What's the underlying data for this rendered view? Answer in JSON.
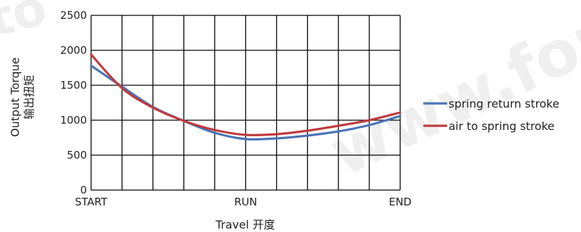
{
  "watermark": {
    "left_text": "to",
    "right_text": "www.forc"
  },
  "chart_data": {
    "type": "line",
    "xlabel": "Travel 开度",
    "ylabel_line1": "Output Torque",
    "ylabel_line2": "输出扭矩",
    "ylim": [
      0,
      2500
    ],
    "yticks": [
      0,
      500,
      1000,
      1500,
      2000,
      2500
    ],
    "ytick_labels": [
      "0",
      "500",
      "1000",
      "1500",
      "2000",
      "2500"
    ],
    "xlim": [
      0,
      10
    ],
    "x_ticks": [
      {
        "x": 0,
        "label": "START"
      },
      {
        "x": 5,
        "label": "RUN"
      },
      {
        "x": 10,
        "label": "END"
      }
    ],
    "grid": true,
    "legend_position": "right",
    "series": [
      {
        "name": "spring return stroke",
        "color": "#4a74b4",
        "points": [
          [
            0,
            1780
          ],
          [
            1,
            1480
          ],
          [
            2,
            1190
          ],
          [
            3,
            990
          ],
          [
            4,
            820
          ],
          [
            5,
            730
          ],
          [
            6,
            740
          ],
          [
            7,
            780
          ],
          [
            8,
            840
          ],
          [
            9,
            930
          ],
          [
            10,
            1060
          ]
        ]
      },
      {
        "name": "air to spring stroke",
        "color": "#bf3a3d",
        "points": [
          [
            0,
            1940
          ],
          [
            1,
            1460
          ],
          [
            2,
            1180
          ],
          [
            3,
            990
          ],
          [
            4,
            860
          ],
          [
            5,
            790
          ],
          [
            6,
            800
          ],
          [
            7,
            850
          ],
          [
            8,
            920
          ],
          [
            9,
            1000
          ],
          [
            10,
            1110
          ]
        ]
      }
    ]
  }
}
